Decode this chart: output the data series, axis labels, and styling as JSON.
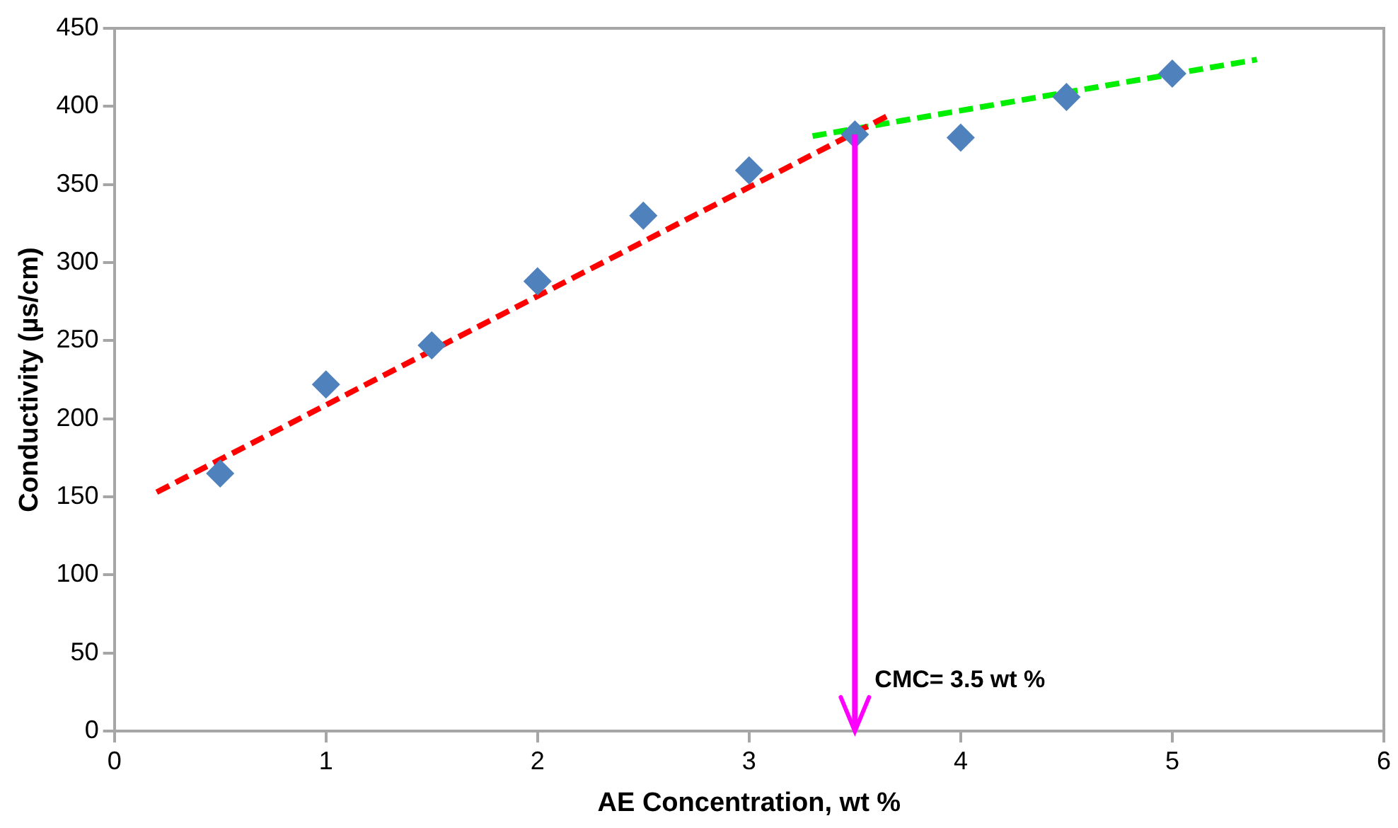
{
  "chart_data": {
    "type": "scatter",
    "xlabel": "AE Concentration, wt %",
    "ylabel": "Conductivity (µs/cm)",
    "xlim": [
      0,
      6
    ],
    "xticks": [
      0,
      1,
      2,
      3,
      4,
      5,
      6
    ],
    "ylim": [
      0,
      450
    ],
    "yticks": [
      0,
      50,
      100,
      150,
      200,
      250,
      300,
      350,
      400,
      450
    ],
    "grid": false,
    "legend": false,
    "marker": "diamond",
    "series": [
      {
        "type": "scatter",
        "color": "#4f81bd",
        "x": [
          0.5,
          1,
          1.5,
          2,
          2.5,
          3,
          3.5,
          4,
          4.5,
          5
        ],
        "values": [
          165,
          222,
          247,
          288,
          330,
          359,
          382,
          380,
          406,
          421
        ]
      },
      {
        "type": "line",
        "color": "#ff0000",
        "line_style": "dashed",
        "marker": "none",
        "x": [
          0.2,
          3.67
        ],
        "values": [
          153,
          395
        ]
      },
      {
        "type": "line",
        "color": "#00ee00",
        "line_style": "dashed",
        "marker": "none",
        "x": [
          3.3,
          5.4
        ],
        "values": [
          381,
          430
        ]
      }
    ],
    "ref_lines": [
      {
        "axis": "x",
        "value": 3.5,
        "label": "CMC= 3.5 wt %",
        "color": "#ff00ff"
      }
    ]
  }
}
